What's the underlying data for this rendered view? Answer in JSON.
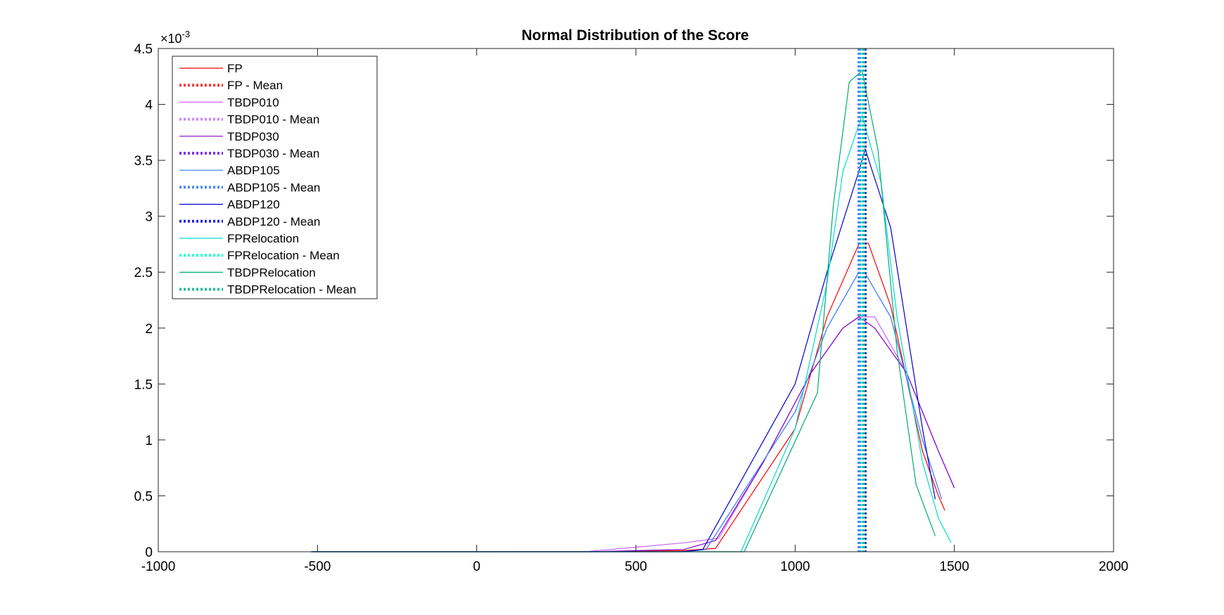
{
  "chart_data": {
    "type": "line",
    "title": "Normal Distribution of the Score",
    "xlabel": "",
    "ylabel": "",
    "xlim": [
      -1000,
      2000
    ],
    "ylim": [
      0,
      0.0045
    ],
    "x_ticks": [
      "-1000",
      "-500",
      "0",
      "500",
      "1000",
      "1500",
      "2000"
    ],
    "y_ticks": [
      "0",
      "0.5",
      "1",
      "1.5",
      "2",
      "2.5",
      "3",
      "3.5",
      "4",
      "4.5"
    ],
    "y_exponent": {
      "base": "×10",
      "power": "-3"
    },
    "grid": false,
    "legend_position": "top-left",
    "series": [
      {
        "name": "FP",
        "color": "#ff0000",
        "style": "solid",
        "x": [
          -520,
          0,
          350,
          650,
          750,
          1000,
          1100,
          1200,
          1230,
          1300,
          1400,
          1450,
          1470
        ],
        "y": [
          0,
          0,
          0,
          1e-05,
          3e-05,
          0.0011,
          0.0021,
          0.00275,
          0.00276,
          0.0022,
          0.0009,
          0.0005,
          0.00037
        ]
      },
      {
        "name": "FP - Mean",
        "color": "#ff3333",
        "style": "dotted",
        "mean": 1210
      },
      {
        "name": "TBDP010",
        "color": "#cc66ff",
        "style": "solid",
        "x": [
          -520,
          0,
          350,
          500,
          650,
          760,
          900,
          1050,
          1150,
          1200,
          1250,
          1350,
          1450,
          1500
        ],
        "y": [
          0,
          0,
          3e-06,
          4e-05,
          8e-05,
          0.00012,
          0.0008,
          0.0016,
          0.002,
          0.0021,
          0.0021,
          0.0016,
          0.0009,
          0.00057
        ]
      },
      {
        "name": "TBDP010 - Mean",
        "color": "#cc88ff",
        "style": "dotted",
        "mean": 1205
      },
      {
        "name": "TBDP030",
        "color": "#8800cc",
        "style": "solid",
        "x": [
          -520,
          0,
          350,
          500,
          650,
          750,
          900,
          1050,
          1150,
          1200,
          1250,
          1350,
          1450,
          1500
        ],
        "y": [
          0,
          0,
          0,
          1e-05,
          2e-05,
          0.0001,
          0.0008,
          0.0016,
          0.002,
          0.0021,
          0.002,
          0.0016,
          0.0009,
          0.00057
        ]
      },
      {
        "name": "TBDP030 - Mean",
        "color": "#7a33ee",
        "style": "dotted",
        "mean": 1205
      },
      {
        "name": "ABDP105",
        "color": "#3377ff",
        "style": "solid",
        "x": [
          -520,
          0,
          350,
          650,
          720,
          1000,
          1100,
          1200,
          1220,
          1300,
          1400,
          1460
        ],
        "y": [
          0,
          0,
          0,
          0,
          2e-05,
          0.00125,
          0.002,
          0.0025,
          0.00249,
          0.0021,
          0.001,
          0.00047
        ]
      },
      {
        "name": "ABDP105 - Mean",
        "color": "#4d88ff",
        "style": "dotted",
        "mean": 1200
      },
      {
        "name": "ABDP120",
        "color": "#0000cc",
        "style": "solid",
        "x": [
          -520,
          0,
          350,
          640,
          710,
          1000,
          1100,
          1200,
          1220,
          1300,
          1350,
          1400,
          1440
        ],
        "y": [
          0,
          0,
          0,
          0,
          2e-05,
          0.0015,
          0.0025,
          0.0034,
          0.0036,
          0.0029,
          0.002,
          0.0011,
          0.00047
        ]
      },
      {
        "name": "ABDP120 - Mean",
        "color": "#2222dd",
        "style": "dotted",
        "mean": 1220
      },
      {
        "name": "FPRelocation",
        "color": "#00ddcc",
        "style": "solid",
        "x": [
          -520,
          0,
          350,
          650,
          830,
          1000,
          1100,
          1150,
          1210,
          1270,
          1320,
          1400,
          1450,
          1490
        ],
        "y": [
          0,
          0,
          0,
          0,
          0,
          0.0011,
          0.0024,
          0.0034,
          0.0039,
          0.0033,
          0.0021,
          0.0008,
          0.0003,
          8e-05
        ]
      },
      {
        "name": "FPRelocation - Mean",
        "color": "#22ffcc",
        "style": "dotted",
        "mean": 1210
      },
      {
        "name": "TBDPRelocation",
        "color": "#00aa77",
        "style": "solid",
        "x": [
          -520,
          0,
          350,
          650,
          840,
          1070,
          1120,
          1170,
          1210,
          1260,
          1320,
          1380,
          1440
        ],
        "y": [
          0,
          0,
          0,
          0,
          0,
          0.00142,
          0.0031,
          0.0042,
          0.0043,
          0.0036,
          0.0018,
          0.0006,
          0.00014
        ]
      },
      {
        "name": "TBDPRelocation - Mean",
        "color": "#22bb99",
        "style": "dotted",
        "mean": 1215
      }
    ]
  }
}
